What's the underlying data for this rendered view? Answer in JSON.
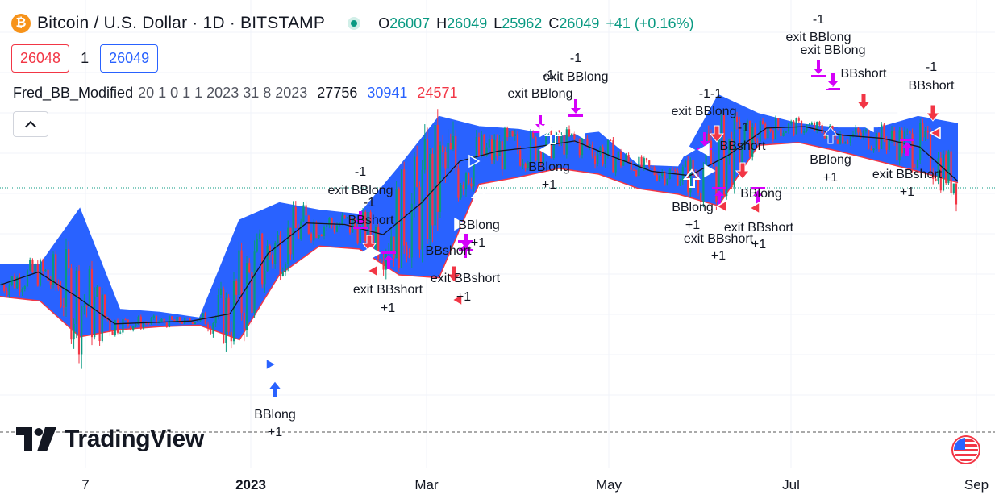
{
  "header": {
    "logo_glyph": "₿",
    "symbol": "Bitcoin / U.S. Dollar · 1D · BITSTAMP",
    "ohlc": {
      "o_label": "O",
      "o": "26007",
      "h_label": "H",
      "h": "26049",
      "l_label": "L",
      "l": "25962",
      "c_label": "C",
      "c": "26049",
      "change": "+41 (+0.16%)"
    }
  },
  "prices": {
    "bid": "26048",
    "spread": "1",
    "ask": "26049"
  },
  "indicator": {
    "name": "Fred_BB_Modified",
    "params": "20 1 0 1 1 2023 31 8 2023",
    "val1": "27756",
    "val2": "30941",
    "val3": "24571"
  },
  "branding": {
    "logo_text": "TradingView"
  },
  "colors": {
    "band_fill": "#2962ff",
    "basis": "#131722",
    "bull": "#089981",
    "bear": "#f23645",
    "upper_band": "#2962ff",
    "lower_band": "#f23645"
  },
  "chart_data": {
    "type": "candlestick",
    "x_ticks": [
      "7",
      "2023",
      "Mar",
      "May",
      "Jul",
      "Sep"
    ],
    "last_price_line": 26049,
    "series": [
      {
        "name": "Fred_BB_Modified basis",
        "approx_values": [
          19300,
          20200,
          18500,
          16600,
          16700,
          16800,
          17300,
          21500,
          23600,
          23500,
          22800,
          25000,
          27900,
          28600,
          28900,
          29300,
          28200,
          27200,
          26900,
          28300,
          30200,
          30300,
          29700,
          29500,
          28900,
          26500
        ]
      },
      {
        "name": "Upper band",
        "approx_values": [
          20700,
          20700,
          24600,
          17600,
          17400,
          17000,
          23800,
          25000,
          24500,
          24200,
          27500,
          31000,
          30300,
          30100,
          29600,
          29900,
          27600,
          27500,
          32500,
          31200,
          30500,
          30200,
          30200,
          31000,
          30500
        ]
      },
      {
        "name": "Lower band",
        "approx_values": [
          18500,
          18200,
          15700,
          16200,
          16400,
          16500,
          15500,
          20000,
          22000,
          21800,
          20000,
          19800,
          26300,
          26800,
          27400,
          27000,
          26000,
          25600,
          24800,
          29000,
          29200,
          28600,
          27900,
          27200,
          26400
        ]
      }
    ],
    "signals": [
      {
        "label": "BBlong",
        "qty": "+1"
      },
      {
        "label": "exit BBlong",
        "qty": "-1"
      },
      {
        "label": "BBshort",
        "qty": "-1"
      },
      {
        "label": "exit BBshort",
        "qty": "+1"
      }
    ]
  },
  "signal_texts": {
    "s1a": "BBlong",
    "s1b": "+1",
    "s2a": "-1",
    "s2b": "exit BBlong",
    "s3a": "-1",
    "s3b": "BBshort",
    "s4a": "exit BBshort",
    "s4b": "+1",
    "s5a": "BBlong",
    "s5b": "+1",
    "s6a": "BBshort",
    "s7a": "exit BBshort",
    "s7b": "+1",
    "s8a": "-1",
    "s8b": "exit BBlong",
    "s9a": "-1",
    "s9b": "exit BBlong",
    "s10a": "BBlong",
    "s10b": "+1",
    "s11a": "-1-1",
    "s11b": "exit BBlong",
    "s12a": "BBshort",
    "s13a": "-1",
    "s14a": "BBlong",
    "s14b": "+1",
    "s15a": "exit BBshort",
    "s15b": "+1",
    "s16a": "BBlong",
    "s17a": "exit BBshort",
    "s17b": "+1",
    "s18a": "-1",
    "s18b": "exit BBlong",
    "s18c": "exit BBlong",
    "s19a": "BBshort",
    "s20a": "BBlong",
    "s20b": "+1",
    "s21a": "-1",
    "s21b": "BBshort",
    "s22a": "exit BBshort",
    "s22b": "+1"
  }
}
